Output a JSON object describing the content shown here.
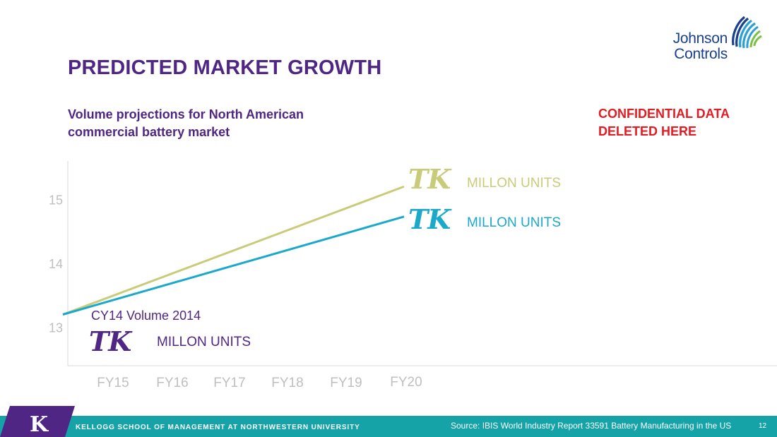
{
  "header": {
    "title": "PREDICTED MARKET GROWTH",
    "subtitle_line1": "Volume projections for North American",
    "subtitle_line2": "commercial battery market",
    "confidential_line1": "CONFIDENTIAL DATA",
    "confidential_line2": "DELETED HERE"
  },
  "logo": {
    "line1": "Johnson",
    "line2": "Controls",
    "colors": [
      "#1b3f8f",
      "#2a9fd6",
      "#7ac143"
    ]
  },
  "chart_data": {
    "type": "line",
    "categories": [
      "FY15",
      "FY16",
      "FY17",
      "FY18",
      "FY19",
      "FY20"
    ],
    "yticks": [
      13,
      14,
      15
    ],
    "ylim": [
      12.4,
      15.6
    ],
    "grid": false,
    "series": [
      {
        "color": "#c8cc78",
        "points": [
          [
            0,
            13.2
          ],
          [
            5,
            15.2
          ]
        ]
      },
      {
        "color": "#1aa9c9",
        "points": [
          [
            0,
            13.2
          ],
          [
            5,
            14.73
          ]
        ]
      }
    ],
    "annotations": [
      {
        "id": "top",
        "tk": "TK",
        "units": "MILLON UNITS",
        "color": "#c8cc78"
      },
      {
        "id": "mid",
        "tk": "TK",
        "units": "MILLON UNITS",
        "color": "#1aa9c9"
      },
      {
        "id": "base",
        "label": "CY14 Volume 2014",
        "tk": "TK",
        "units": "MILLON UNITS",
        "color": "#4f2683"
      }
    ]
  },
  "footer": {
    "school": "KELLOGG SCHOOL OF MANAGEMENT AT NORTHWESTERN UNIVERSITY",
    "source": "Source: IBIS World Industry Report 33591 Battery Manufacturing in the US",
    "page": "12",
    "brand_color": "#15a3a8",
    "k_color": "#4f2683",
    "k_letter": "K"
  }
}
